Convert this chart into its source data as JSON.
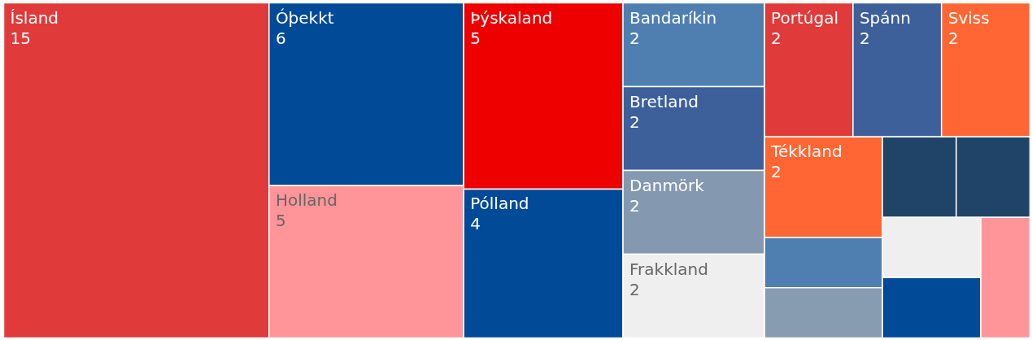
{
  "chart_data": {
    "type": "other",
    "categories": [
      "Ísland",
      "Óþekkt",
      "Holland",
      "Þýskaland",
      "Pólland",
      "Bandaríkin",
      "Bretland",
      "Danmörk",
      "Frakkland",
      "Portúgal",
      "Spánn",
      "Sviss",
      "Tékkland",
      null,
      null,
      null,
      null,
      null,
      null,
      null
    ],
    "values": [
      15,
      6,
      5,
      5,
      4,
      2,
      2,
      2,
      2,
      2,
      2,
      2,
      2,
      null,
      null,
      null,
      null,
      null,
      null,
      null
    ],
    "colors": [
      "#e03a3a",
      "#004a98",
      "#ff9599",
      "#ee0000",
      "#004a98",
      "#4e7fb0",
      "#3d5f9a",
      "#8499b0",
      "#efefef",
      "#e03a3a",
      "#3d5f9a",
      "#ff6633",
      "#ff6633",
      "#4e7fb0",
      "#879cb0",
      "#1f4468",
      "#1f4468",
      "#efefef",
      "#004a98",
      "#ff9599"
    ],
    "data_labels": true
  }
}
